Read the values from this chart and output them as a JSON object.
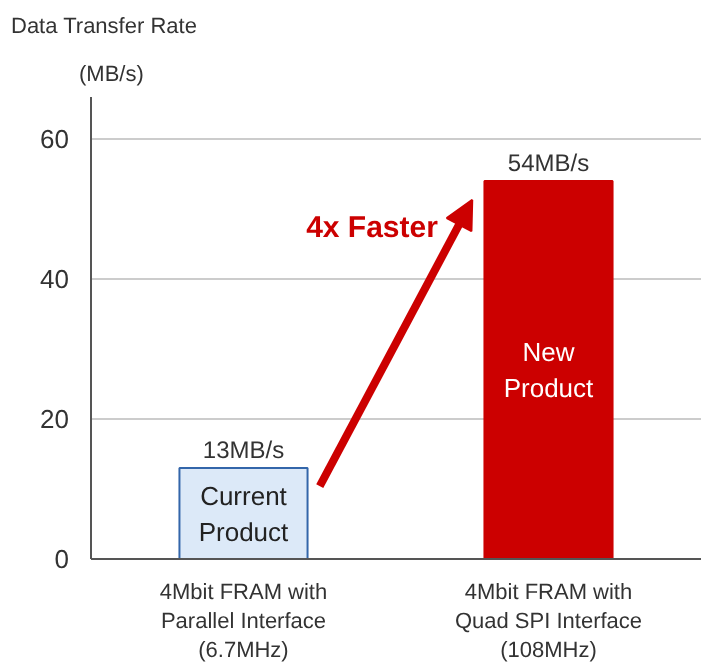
{
  "chart_data": {
    "type": "bar",
    "title": "Data Transfer Rate",
    "ylabel": "(MB/s)",
    "categories": [
      "4Mbit FRAM with\nParallel Interface\n(6.7MHz)",
      "4Mbit FRAM with\nQuad SPI Interface\n(108MHz)"
    ],
    "values": [
      13,
      54
    ],
    "colors": [
      "#dce9f8",
      "#cc0000"
    ],
    "value_labels": [
      "13MB/s",
      "54MB/s"
    ],
    "ylim": [
      0,
      66
    ],
    "yticks": [
      0,
      20,
      40,
      60
    ],
    "grid": "y",
    "annotations": [
      "Current\nProduct",
      "New\nProduct",
      "4x Faster"
    ]
  }
}
